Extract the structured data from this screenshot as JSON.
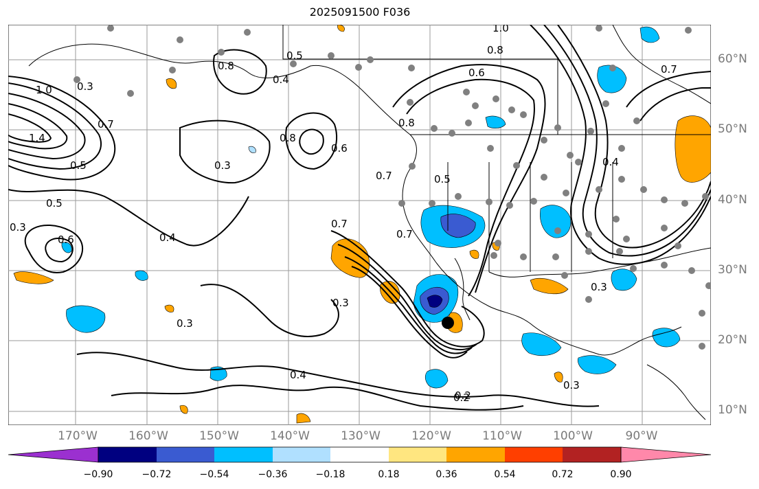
{
  "title": "2025091500 F036",
  "lat_labels": [
    "60°N",
    "50°N",
    "40°N",
    "30°N",
    "20°N",
    "10°N"
  ],
  "lon_labels": [
    "170°W",
    "160°W",
    "150°W",
    "140°W",
    "130°W",
    "120°W",
    "110°W",
    "100°W",
    "90°W"
  ],
  "contour_labels": [
    "1.0",
    "0.8",
    "0.6",
    "0.5",
    "0.7",
    "0.4",
    "0.3",
    "1.4",
    "0.2",
    "1.0",
    "0.8",
    "0.5",
    "0.7",
    "0.3",
    "0.3",
    "0.4",
    "0.5",
    "0.6",
    "0.7",
    "0.8",
    "0.7",
    "0.3",
    "0.3",
    "0.4",
    "0.2",
    "0.3",
    "0.4",
    "0.5",
    "0.3",
    "0.6",
    "0.8",
    "0.7"
  ],
  "colorbar": {
    "ticks": [
      "−0.90",
      "−0.72",
      "−0.54",
      "−0.36",
      "−0.18",
      "0.18",
      "0.36",
      "0.54",
      "0.72",
      "0.90"
    ],
    "colors": [
      "#9b30d0",
      "#000080",
      "#3a5bd1",
      "#00bfff",
      "#b0e0ff",
      "#ffffff",
      "#ffe680",
      "#ffa500",
      "#ff3f00",
      "#b22222",
      "#ff88aa"
    ]
  },
  "colors": {
    "contour": "#000000",
    "grid": "#9a9a9a",
    "coast": "#000000",
    "dots": "#808080",
    "neg_light": "#00bfff",
    "neg_mid": "#3a5bd1",
    "neg_dark": "#000080",
    "pos": "#ffa500"
  },
  "storm_marker": "black-dot"
}
